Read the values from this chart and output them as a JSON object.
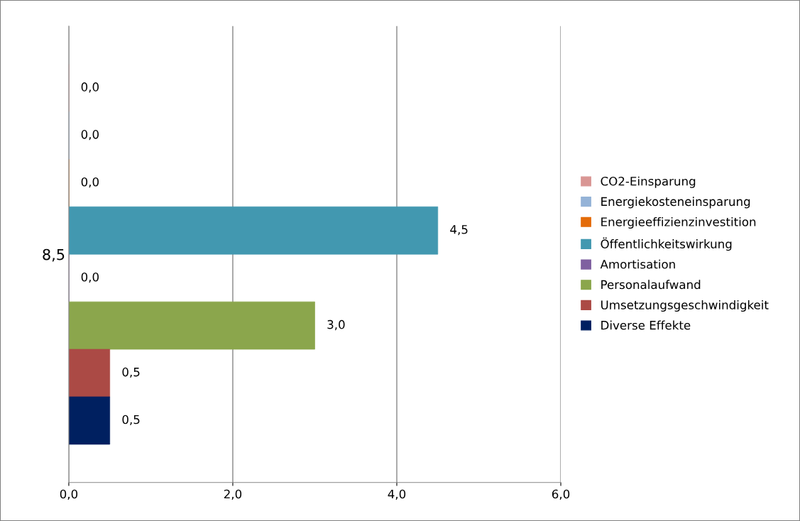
{
  "chart_data": {
    "type": "bar",
    "orientation": "horizontal",
    "categories": [
      "8,5"
    ],
    "series": [
      {
        "name": "CO2-Einsparung",
        "color": "#d99694",
        "values": [
          0.0
        ],
        "value_labels": [
          "0,0"
        ]
      },
      {
        "name": "Energiekosteneinsparung",
        "color": "#95b3d7",
        "values": [
          0.0
        ],
        "value_labels": [
          "0,0"
        ]
      },
      {
        "name": "Energieeffizienzinvestition",
        "color": "#e46c0a",
        "values": [
          0.0
        ],
        "value_labels": [
          "0,0"
        ]
      },
      {
        "name": "Öffentlichkeitswirkung",
        "color": "#4298b0",
        "values": [
          4.5
        ],
        "value_labels": [
          "4,5"
        ]
      },
      {
        "name": "Amortisation",
        "color": "#7f60a0",
        "values": [
          0.0
        ],
        "value_labels": [
          "0,0"
        ]
      },
      {
        "name": "Personalaufwand",
        "color": "#8ba64c",
        "values": [
          3.0
        ],
        "value_labels": [
          "3,0"
        ]
      },
      {
        "name": "Umsetzungsgeschwindigkeit",
        "color": "#ab4a45",
        "values": [
          0.5
        ],
        "value_labels": [
          "0,5"
        ]
      },
      {
        "name": "Diverse Effekte",
        "color": "#002060",
        "values": [
          0.5
        ],
        "value_labels": [
          "0,5"
        ]
      }
    ],
    "xlim": [
      0,
      6
    ],
    "xticks": [
      {
        "value": 0,
        "label": "0,0"
      },
      {
        "value": 2,
        "label": "2,0"
      },
      {
        "value": 4,
        "label": "4,0"
      },
      {
        "value": 6,
        "label": "6,0"
      }
    ],
    "grid": "x",
    "legend": "right"
  }
}
